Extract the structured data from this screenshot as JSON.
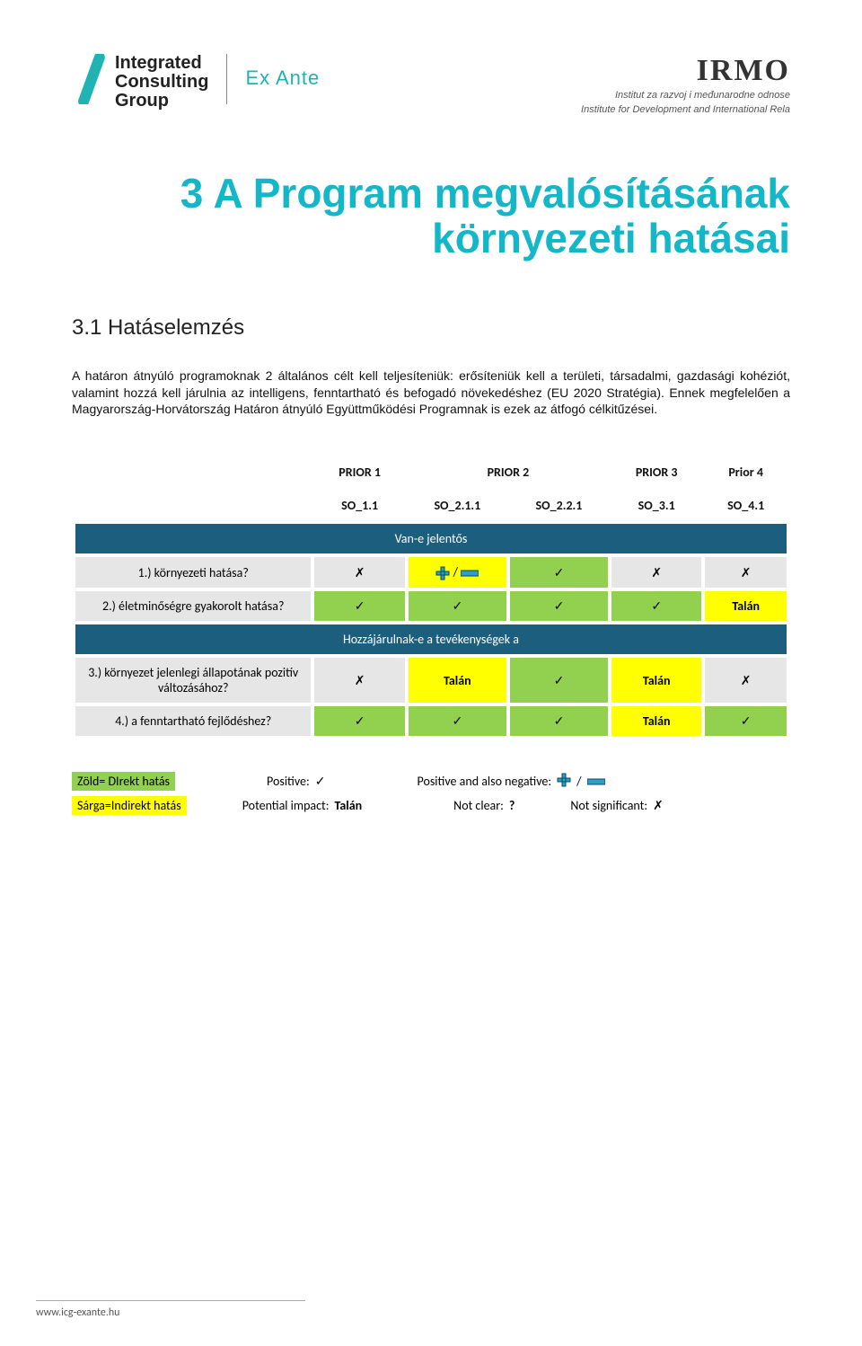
{
  "header": {
    "logo_left_line1": "Integrated",
    "logo_left_line2": "Consulting",
    "logo_left_line3": "Group",
    "exante": "Ex Ante",
    "irmo": "IRMO",
    "irmo_sub1": "Institut za razvoj i međunarodne odnose",
    "irmo_sub2": "Institute for Development and International Rela"
  },
  "title": "3 A Program megvalósításának környezeti hatásai",
  "subtitle": "3.1 Hatáselemzés",
  "body": "A határon átnyúló programoknak 2 általános célt kell teljesíteniük: erősíteniük kell a területi, társadalmi, gazdasági kohéziót, valamint hozzá kell járulnia az intelligens, fenntartható és befogadó növekedéshez (EU 2020 Stratégia). Ennek megfelelően a Magyarország-Horvátország Határon átnyúló Együttműködési Programnak is ezek az átfogó célkitűzései.",
  "matrix": {
    "prior_headers": [
      "PRIOR 1",
      "PRIOR 2",
      "PRIOR 3",
      "Prior 4"
    ],
    "so_headers": [
      "SO_1.1",
      "SO_2.1.1",
      "SO_2.2.1",
      "SO_3.1",
      "SO_4.1"
    ],
    "section1": "Van-e jelentős",
    "section2": "Hozzájárulnak-e a tevékenységek a",
    "row1_label": "1.)  környezeti hatása?",
    "row2_label": "2.)  életminőségre gyakorolt hatása?",
    "row3_label": "3.)  környezet jelenlegi állapotának pozitív változásához?",
    "row4_label": "4.)  a fenntartható fejlődéshez?",
    "talan": "Talán",
    "row1": [
      {
        "bg": "cell-gray",
        "type": "x"
      },
      {
        "bg": "cell-yellow",
        "type": "plusminus"
      },
      {
        "bg": "cell-green",
        "type": "check"
      },
      {
        "bg": "cell-gray",
        "type": "x"
      },
      {
        "bg": "cell-gray",
        "type": "x"
      }
    ],
    "row2": [
      {
        "bg": "cell-green",
        "type": "check"
      },
      {
        "bg": "cell-green",
        "type": "check"
      },
      {
        "bg": "cell-green",
        "type": "check"
      },
      {
        "bg": "cell-green",
        "type": "check"
      },
      {
        "bg": "cell-yellow",
        "type": "talan",
        "bold": true
      }
    ],
    "row3": [
      {
        "bg": "cell-gray",
        "type": "x"
      },
      {
        "bg": "cell-yellow",
        "type": "talan",
        "bold": true
      },
      {
        "bg": "cell-green",
        "type": "check"
      },
      {
        "bg": "cell-yellow",
        "type": "talan",
        "bold": true
      },
      {
        "bg": "cell-gray",
        "type": "x"
      }
    ],
    "row4": [
      {
        "bg": "cell-green",
        "type": "check"
      },
      {
        "bg": "cell-green",
        "type": "check"
      },
      {
        "bg": "cell-green",
        "type": "check"
      },
      {
        "bg": "cell-yellow",
        "type": "talan",
        "bold": true
      },
      {
        "bg": "cell-green",
        "type": "check"
      }
    ]
  },
  "legend": {
    "green": "Zöld= DIrekt hatás",
    "yellow": "Sárga=Indirekt hatás",
    "positive": "Positive: ",
    "posneg": "Positive and also negative: ",
    "potential": "Potential impact: ",
    "talan": "Talán",
    "notclear": "Not clear: ",
    "notsig": "Not significant: ",
    "slash": " / "
  },
  "footer": "www.icg-exante.hu",
  "colors": {
    "title": "#13b7c7",
    "section_bg": "#1c5e7e",
    "green": "#92d050",
    "yellow": "#ffff00",
    "gray": "#e6e6e6",
    "plus": "#2aa0c8",
    "minus": "#2aa0c8"
  }
}
